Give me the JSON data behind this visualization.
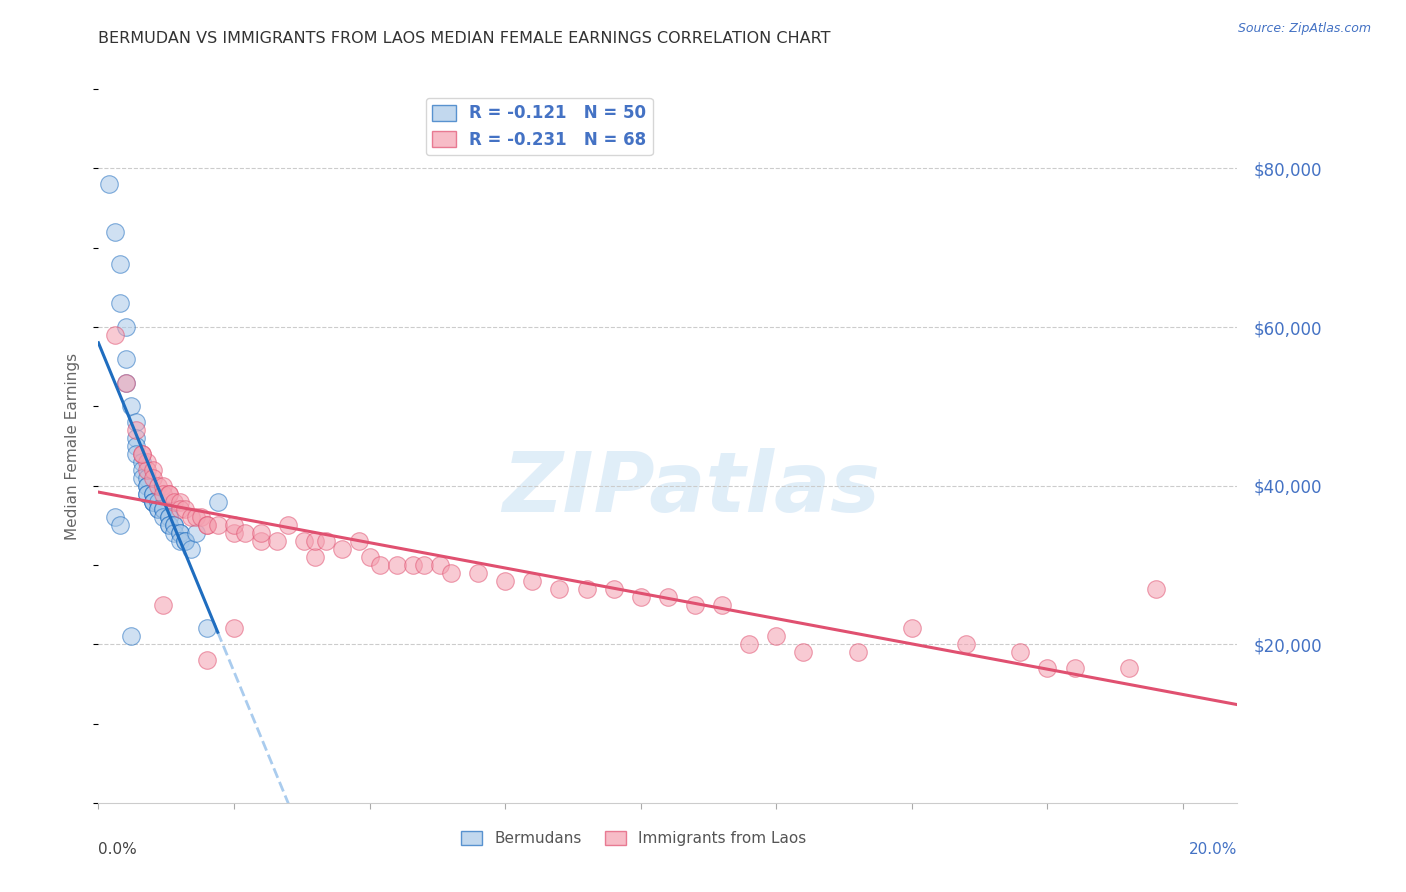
{
  "title": "BERMUDAN VS IMMIGRANTS FROM LAOS MEDIAN FEMALE EARNINGS CORRELATION CHART",
  "source": "Source: ZipAtlas.com",
  "ylabel": "Median Female Earnings",
  "right_yticks": [
    "$80,000",
    "$60,000",
    "$40,000",
    "$20,000"
  ],
  "right_ytick_vals": [
    80000,
    60000,
    40000,
    20000
  ],
  "ylim": [
    0,
    90000
  ],
  "xlim": [
    0.0,
    0.21
  ],
  "legend_blue_r": "-0.121",
  "legend_blue_n": "50",
  "legend_pink_r": "-0.231",
  "legend_pink_n": "68",
  "blue_color": "#a8c8e8",
  "pink_color": "#f4a0b0",
  "line_blue": "#1f6dbf",
  "line_pink": "#e05070",
  "line_dashed_color": "#aaccee",
  "watermark_text": "ZIPatlas",
  "bermudans_x": [
    0.002,
    0.003,
    0.004,
    0.004,
    0.005,
    0.005,
    0.005,
    0.006,
    0.007,
    0.007,
    0.007,
    0.007,
    0.008,
    0.008,
    0.008,
    0.009,
    0.009,
    0.009,
    0.009,
    0.009,
    0.01,
    0.01,
    0.01,
    0.01,
    0.01,
    0.011,
    0.011,
    0.011,
    0.012,
    0.012,
    0.012,
    0.013,
    0.013,
    0.013,
    0.013,
    0.014,
    0.014,
    0.014,
    0.015,
    0.015,
    0.015,
    0.016,
    0.016,
    0.017,
    0.018,
    0.02,
    0.022,
    0.003,
    0.004,
    0.006
  ],
  "bermudans_y": [
    78000,
    72000,
    68000,
    63000,
    60000,
    56000,
    53000,
    50000,
    48000,
    46000,
    45000,
    44000,
    43000,
    42000,
    41000,
    41000,
    40000,
    40000,
    39000,
    39000,
    39000,
    39000,
    38000,
    38000,
    38000,
    38000,
    37000,
    37000,
    37000,
    37000,
    36000,
    36000,
    36000,
    35000,
    35000,
    35000,
    35000,
    34000,
    34000,
    34000,
    33000,
    33000,
    33000,
    32000,
    34000,
    22000,
    38000,
    36000,
    35000,
    21000
  ],
  "laos_x": [
    0.003,
    0.005,
    0.007,
    0.008,
    0.009,
    0.009,
    0.01,
    0.01,
    0.011,
    0.012,
    0.012,
    0.013,
    0.013,
    0.014,
    0.015,
    0.015,
    0.016,
    0.017,
    0.018,
    0.019,
    0.02,
    0.02,
    0.022,
    0.025,
    0.025,
    0.027,
    0.03,
    0.03,
    0.033,
    0.035,
    0.038,
    0.04,
    0.04,
    0.042,
    0.045,
    0.048,
    0.05,
    0.052,
    0.055,
    0.058,
    0.06,
    0.063,
    0.065,
    0.07,
    0.075,
    0.08,
    0.085,
    0.09,
    0.095,
    0.1,
    0.105,
    0.11,
    0.115,
    0.12,
    0.125,
    0.13,
    0.14,
    0.15,
    0.16,
    0.17,
    0.175,
    0.18,
    0.19,
    0.195,
    0.008,
    0.012,
    0.02,
    0.025
  ],
  "laos_y": [
    59000,
    53000,
    47000,
    44000,
    43000,
    42000,
    42000,
    41000,
    40000,
    40000,
    39000,
    39000,
    39000,
    38000,
    38000,
    37000,
    37000,
    36000,
    36000,
    36000,
    35000,
    35000,
    35000,
    34000,
    35000,
    34000,
    33000,
    34000,
    33000,
    35000,
    33000,
    31000,
    33000,
    33000,
    32000,
    33000,
    31000,
    30000,
    30000,
    30000,
    30000,
    30000,
    29000,
    29000,
    28000,
    28000,
    27000,
    27000,
    27000,
    26000,
    26000,
    25000,
    25000,
    20000,
    21000,
    19000,
    19000,
    22000,
    20000,
    19000,
    17000,
    17000,
    17000,
    27000,
    44000,
    25000,
    18000,
    22000
  ]
}
